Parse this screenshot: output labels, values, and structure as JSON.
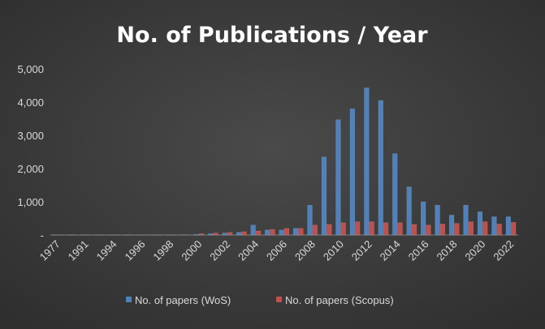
{
  "chart_data": {
    "type": "bar",
    "title": "No. of Publications / Year",
    "categories": [
      "1977",
      null,
      "1991",
      null,
      "1994",
      null,
      "1996",
      null,
      "1998",
      null,
      "2000",
      null,
      "2002",
      null,
      "2004",
      null,
      "2006",
      null,
      "2008",
      null,
      "2010",
      null,
      "2012",
      null,
      "2014",
      null,
      "2016",
      null,
      "2018",
      null,
      "2020",
      null,
      "2022"
    ],
    "series": [
      {
        "name": "No. of papers (WoS)",
        "color": "#4f81bd",
        "values": [
          5,
          5,
          5,
          5,
          5,
          5,
          5,
          5,
          5,
          5,
          20,
          40,
          60,
          80,
          300,
          150,
          150,
          200,
          900,
          2350,
          3470,
          3800,
          4430,
          4050,
          2450,
          1450,
          1000,
          900,
          600,
          900,
          700,
          550,
          550
        ]
      },
      {
        "name": "No. of papers (Scopus)",
        "color": "#c0504d",
        "values": [
          5,
          5,
          5,
          5,
          5,
          5,
          5,
          5,
          5,
          5,
          40,
          60,
          80,
          100,
          120,
          170,
          200,
          200,
          300,
          320,
          370,
          400,
          400,
          370,
          370,
          320,
          300,
          330,
          350,
          400,
          400,
          330,
          380
        ]
      }
    ],
    "ylim": [
      0,
      5000
    ],
    "yticks": [
      {
        "value": 0,
        "label": "-"
      },
      {
        "value": 1000,
        "label": "1,000"
      },
      {
        "value": 2000,
        "label": "2,000"
      },
      {
        "value": 3000,
        "label": "3,000"
      },
      {
        "value": 4000,
        "label": "4,000"
      },
      {
        "value": 5000,
        "label": "5,000"
      }
    ],
    "grid": false,
    "legend": "bottom"
  }
}
